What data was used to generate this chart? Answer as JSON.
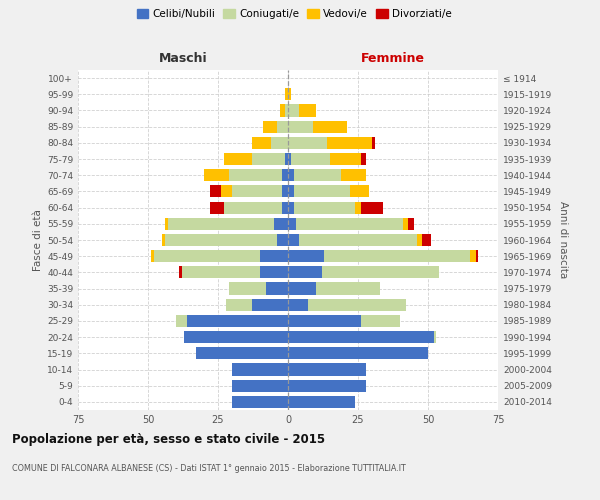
{
  "age_groups": [
    "0-4",
    "5-9",
    "10-14",
    "15-19",
    "20-24",
    "25-29",
    "30-34",
    "35-39",
    "40-44",
    "45-49",
    "50-54",
    "55-59",
    "60-64",
    "65-69",
    "70-74",
    "75-79",
    "80-84",
    "85-89",
    "90-94",
    "95-99",
    "100+"
  ],
  "birth_years": [
    "2010-2014",
    "2005-2009",
    "2000-2004",
    "1995-1999",
    "1990-1994",
    "1985-1989",
    "1980-1984",
    "1975-1979",
    "1970-1974",
    "1965-1969",
    "1960-1964",
    "1955-1959",
    "1950-1954",
    "1945-1949",
    "1940-1944",
    "1935-1939",
    "1930-1934",
    "1925-1929",
    "1920-1924",
    "1915-1919",
    "≤ 1914"
  ],
  "maschi": {
    "celibi": [
      20,
      20,
      20,
      33,
      37,
      36,
      13,
      8,
      10,
      10,
      4,
      5,
      2,
      2,
      2,
      1,
      0,
      0,
      0,
      0,
      0
    ],
    "coniugati": [
      0,
      0,
      0,
      0,
      0,
      4,
      9,
      13,
      28,
      38,
      40,
      38,
      21,
      18,
      19,
      12,
      6,
      4,
      1,
      0,
      0
    ],
    "vedovi": [
      0,
      0,
      0,
      0,
      0,
      0,
      0,
      0,
      0,
      1,
      1,
      1,
      0,
      4,
      9,
      10,
      7,
      5,
      2,
      1,
      0
    ],
    "divorziati": [
      0,
      0,
      0,
      0,
      0,
      0,
      0,
      0,
      1,
      0,
      0,
      0,
      5,
      4,
      0,
      0,
      0,
      0,
      0,
      0,
      0
    ]
  },
  "femmine": {
    "nubili": [
      24,
      28,
      28,
      50,
      52,
      26,
      7,
      10,
      12,
      13,
      4,
      3,
      2,
      2,
      2,
      1,
      0,
      0,
      0,
      0,
      0
    ],
    "coniugate": [
      0,
      0,
      0,
      0,
      1,
      14,
      35,
      23,
      42,
      52,
      42,
      38,
      22,
      20,
      17,
      14,
      14,
      9,
      4,
      0,
      0
    ],
    "vedove": [
      0,
      0,
      0,
      0,
      0,
      0,
      0,
      0,
      0,
      2,
      2,
      2,
      2,
      7,
      9,
      11,
      16,
      12,
      6,
      1,
      0
    ],
    "divorziate": [
      0,
      0,
      0,
      0,
      0,
      0,
      0,
      0,
      0,
      1,
      3,
      2,
      8,
      0,
      0,
      2,
      1,
      0,
      0,
      0,
      0
    ]
  },
  "color_celibi": "#4472c4",
  "color_coniugati": "#c5d9a0",
  "color_vedovi": "#ffc000",
  "color_divorziati": "#cc0000",
  "xlim": 75,
  "title_main": "Popolazione per età, sesso e stato civile - 2015",
  "title_sub": "COMUNE DI FALCONARA ALBANESE (CS) - Dati ISTAT 1° gennaio 2015 - Elaborazione TUTTITALIA.IT",
  "label_maschi": "Maschi",
  "label_femmine": "Femmine",
  "ylabel_left": "Fasce di età",
  "ylabel_right": "Anni di nascita",
  "legend_labels": [
    "Celibi/Nubili",
    "Coniugati/e",
    "Vedovi/e",
    "Divorziati/e"
  ],
  "bg_color": "#f0f0f0",
  "plot_bg_color": "#ffffff",
  "grid_color": "#cccccc"
}
